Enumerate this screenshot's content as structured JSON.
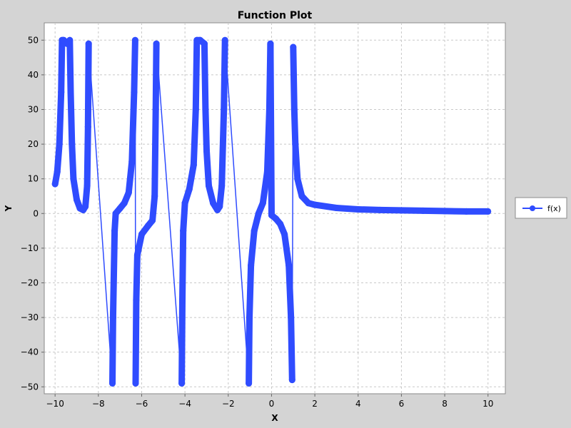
{
  "chart_data": {
    "type": "line",
    "title": "Function Plot",
    "xlabel": "X",
    "ylabel": "Y",
    "xlim": [
      -10.5,
      10.8
    ],
    "ylim": [
      -52,
      55
    ],
    "x_ticks": [
      -10,
      -8,
      -6,
      -4,
      -2,
      0,
      2,
      4,
      6,
      8,
      10
    ],
    "y_ticks": [
      -50,
      -40,
      -30,
      -20,
      -10,
      0,
      10,
      20,
      30,
      40,
      50
    ],
    "grid": true,
    "legend_position": "right",
    "series": [
      {
        "name": "f(x)",
        "color": "#2f4cff",
        "marker": "circle",
        "points": [
          [
            -10.0,
            8.5
          ],
          [
            -9.9,
            12
          ],
          [
            -9.8,
            20
          ],
          [
            -9.72,
            35
          ],
          [
            -9.68,
            50
          ],
          [
            -9.6,
            50
          ],
          [
            -9.45,
            49
          ],
          [
            -9.32,
            50
          ],
          [
            -9.28,
            35
          ],
          [
            -9.22,
            20
          ],
          [
            -9.15,
            10
          ],
          [
            -9.0,
            4
          ],
          [
            -8.85,
            1.5
          ],
          [
            -8.7,
            1
          ],
          [
            -8.6,
            2
          ],
          [
            -8.52,
            8
          ],
          [
            -8.48,
            25
          ],
          [
            -8.45,
            49
          ],
          [
            -7.35,
            -49
          ],
          [
            -7.32,
            -30
          ],
          [
            -7.25,
            -5
          ],
          [
            -7.2,
            0
          ],
          [
            -7.0,
            1.5
          ],
          [
            -6.8,
            3
          ],
          [
            -6.6,
            6
          ],
          [
            -6.45,
            15
          ],
          [
            -6.35,
            35
          ],
          [
            -6.3,
            50
          ],
          [
            -6.28,
            -49
          ],
          [
            -6.25,
            -25
          ],
          [
            -6.2,
            -12
          ],
          [
            -6.0,
            -6
          ],
          [
            -5.7,
            -3.5
          ],
          [
            -5.5,
            -2
          ],
          [
            -5.4,
            5
          ],
          [
            -5.35,
            30
          ],
          [
            -5.32,
            49
          ],
          [
            -4.15,
            -49
          ],
          [
            -4.12,
            -25
          ],
          [
            -4.08,
            -5
          ],
          [
            -4.0,
            3
          ],
          [
            -3.8,
            7
          ],
          [
            -3.6,
            14
          ],
          [
            -3.5,
            30
          ],
          [
            -3.45,
            50
          ],
          [
            -3.3,
            50
          ],
          [
            -3.1,
            49
          ],
          [
            -3.05,
            30
          ],
          [
            -3.0,
            18
          ],
          [
            -2.9,
            8
          ],
          [
            -2.7,
            3
          ],
          [
            -2.5,
            1
          ],
          [
            -2.4,
            2
          ],
          [
            -2.3,
            8
          ],
          [
            -2.2,
            30
          ],
          [
            -2.15,
            50
          ],
          [
            -1.05,
            -49
          ],
          [
            -1.02,
            -30
          ],
          [
            -0.95,
            -15
          ],
          [
            -0.8,
            -5
          ],
          [
            -0.6,
            0
          ],
          [
            -0.4,
            3
          ],
          [
            -0.2,
            12
          ],
          [
            -0.1,
            30
          ],
          [
            -0.05,
            49
          ],
          [
            0.0,
            -0.5
          ],
          [
            0.2,
            -1.5
          ],
          [
            0.4,
            -3
          ],
          [
            0.6,
            -6
          ],
          [
            0.8,
            -15
          ],
          [
            0.9,
            -30
          ],
          [
            0.95,
            -48
          ],
          [
            1.0,
            48
          ],
          [
            1.05,
            30
          ],
          [
            1.1,
            20
          ],
          [
            1.2,
            10
          ],
          [
            1.4,
            5
          ],
          [
            1.7,
            3
          ],
          [
            2.0,
            2.5
          ],
          [
            3.0,
            1.6
          ],
          [
            4.0,
            1.2
          ],
          [
            5.0,
            1.0
          ],
          [
            6.0,
            0.9
          ],
          [
            7.0,
            0.8
          ],
          [
            8.0,
            0.7
          ],
          [
            9.0,
            0.6
          ],
          [
            10.0,
            0.6
          ]
        ]
      }
    ]
  }
}
